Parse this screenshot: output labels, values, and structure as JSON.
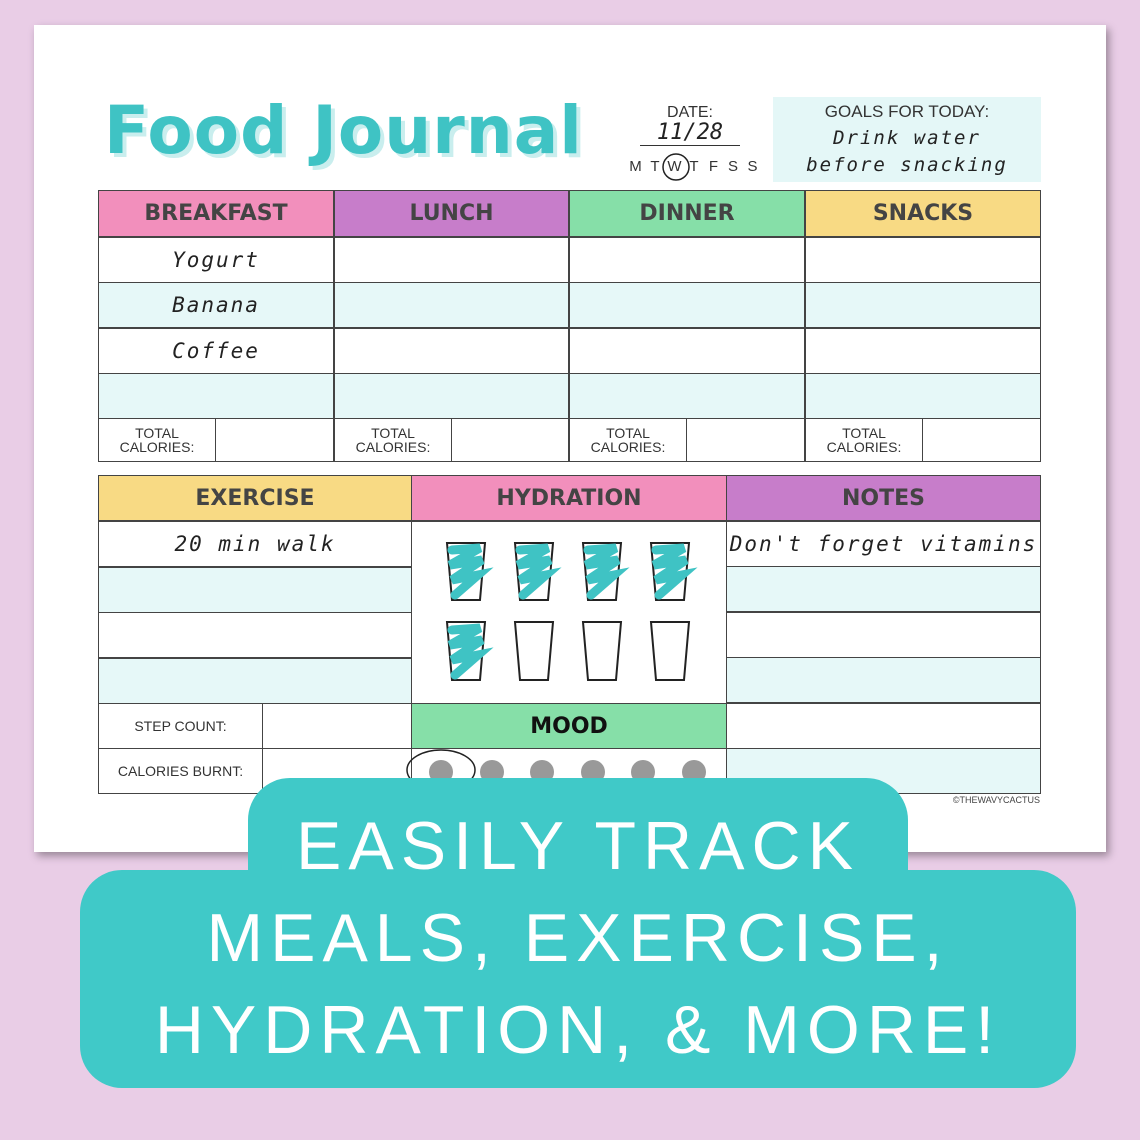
{
  "title": "Food Journal",
  "date": {
    "label": "DATE:",
    "value": "11/28",
    "weekdays": [
      "M",
      "T",
      "W",
      "T",
      "F",
      "S",
      "S"
    ]
  },
  "goals": {
    "label": "GOALS FOR TODAY:",
    "lines": [
      "Drink water",
      "before snacking"
    ]
  },
  "meals": {
    "total_label": "TOTAL CALORIES:",
    "columns": [
      {
        "name": "BREAKFAST",
        "entries": [
          "Yogurt",
          "Banana",
          "Coffee"
        ]
      },
      {
        "name": "LUNCH",
        "entries": []
      },
      {
        "name": "DINNER",
        "entries": []
      },
      {
        "name": "SNACKS",
        "entries": []
      }
    ]
  },
  "exercise": {
    "header": "EXERCISE",
    "entries": [
      "20 min walk"
    ],
    "step_label": "STEP COUNT:",
    "burnt_label": "CALORIES BURNT:"
  },
  "hydration": {
    "header": "HYDRATION"
  },
  "mood": {
    "header": "MOOD"
  },
  "notes": {
    "header": "NOTES",
    "entries": [
      "Don't forget vitamins"
    ]
  },
  "copyright": "©THEWAVYCACTUS",
  "banner": {
    "lines": [
      "EASILY TRACK",
      "MEALS, EXERCISE,",
      "HYDRATION, & MORE!"
    ]
  }
}
